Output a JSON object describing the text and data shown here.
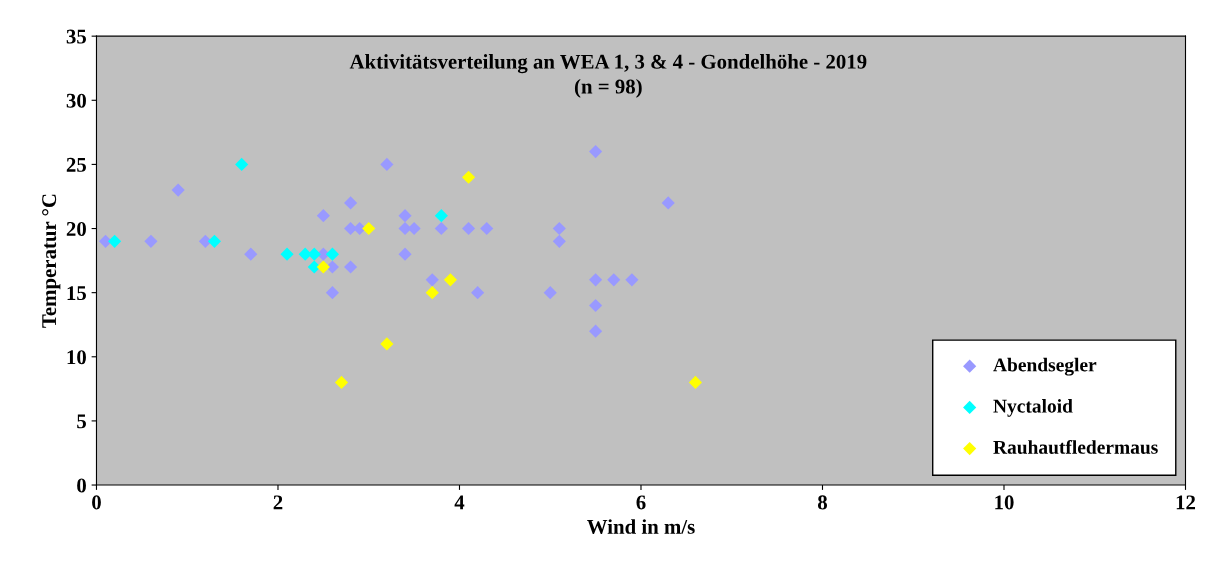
{
  "chart_data": {
    "type": "scatter",
    "title": "Aktivitätsverteilung an WEA 1, 3 & 4 - Gondelhöhe - 2019\n(n = 98)",
    "xlabel": "Wind in m/s",
    "ylabel": "Temperatur °C",
    "xlim": [
      0,
      12
    ],
    "xticks": [
      0,
      2,
      4,
      6,
      8,
      10,
      12
    ],
    "ylim": [
      0,
      35
    ],
    "yticks": [
      0,
      5,
      10,
      15,
      20,
      25,
      30,
      35
    ],
    "grid": false,
    "legend": "bottom right",
    "marker": "diamond",
    "series": [
      {
        "name": "Abendsegler",
        "color": "#9999ff",
        "x": [
          0.1,
          0.6,
          0.9,
          1.2,
          1.7,
          2.5,
          2.5,
          2.6,
          2.6,
          2.8,
          2.8,
          2.8,
          2.9,
          3.2,
          3.4,
          3.4,
          3.4,
          3.5,
          3.7,
          3.8,
          4.1,
          4.2,
          4.3,
          5.0,
          5.1,
          5.1,
          5.5,
          5.5,
          5.5,
          5.5,
          5.7,
          5.9,
          6.3
        ],
        "values": [
          19,
          19,
          23,
          19,
          18,
          18,
          21,
          15,
          17,
          22,
          20,
          17,
          20,
          25,
          21,
          20,
          18,
          20,
          16,
          20,
          20,
          15,
          20,
          15,
          20,
          19,
          26,
          16,
          14,
          12,
          16,
          16,
          22
        ]
      },
      {
        "name": "Nyctaloid",
        "color": "#00ffff",
        "x": [
          0.2,
          1.3,
          1.6,
          2.1,
          2.3,
          2.4,
          2.6,
          2.4,
          3.8
        ],
        "values": [
          19,
          19,
          25,
          18,
          18,
          18,
          18,
          17,
          21
        ]
      },
      {
        "name": "Rauhautfledermaus",
        "color": "#ffff00",
        "x": [
          2.5,
          2.7,
          3.0,
          3.2,
          3.7,
          3.9,
          4.1,
          6.6
        ],
        "values": [
          17,
          8,
          20,
          11,
          15,
          16,
          24,
          8
        ]
      }
    ]
  }
}
